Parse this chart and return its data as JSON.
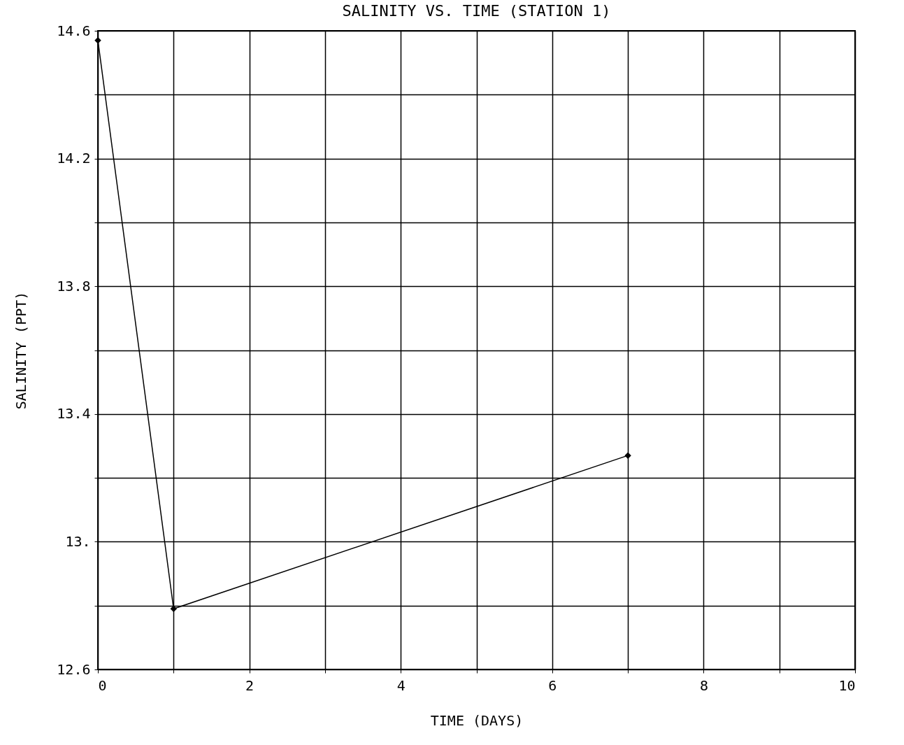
{
  "chart_data": {
    "type": "line",
    "title": "SALINITY VS. TIME (STATION 1)",
    "xlabel": "TIME (DAYS)",
    "ylabel": "SALINITY (PPT)",
    "x": [
      0,
      1,
      7
    ],
    "series": [
      {
        "color": "#000000",
        "values": [
          14.57,
          12.79,
          13.27
        ]
      }
    ],
    "xlim": [
      0,
      10
    ],
    "ylim": [
      12.6,
      14.6
    ],
    "xticks": [
      0,
      {
        "value": 1,
        "label": null
      },
      2,
      {
        "value": 3,
        "label": null
      },
      4,
      {
        "value": 5,
        "label": null
      },
      6,
      {
        "value": 7,
        "label": null
      },
      8,
      {
        "value": 9,
        "label": null
      },
      10
    ],
    "yticks": [
      12.6,
      {
        "value": 12.8,
        "label": null
      },
      {
        "value": 13,
        "label": "13."
      },
      {
        "value": 13.2,
        "label": null
      },
      13.4,
      {
        "value": 13.6,
        "label": null
      },
      13.8,
      {
        "value": 14,
        "label": null
      },
      14.2,
      {
        "value": 14.4,
        "label": null
      },
      14.6
    ],
    "grid": true,
    "marker": "diamond",
    "line_style": "solid"
  }
}
